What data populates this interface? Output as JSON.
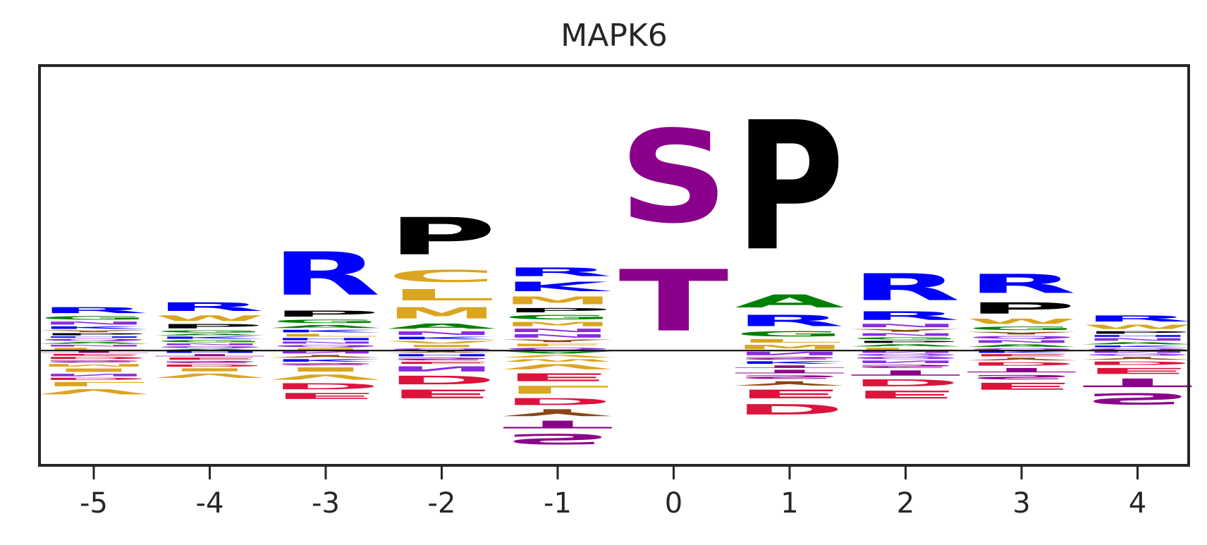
{
  "chart_data": {
    "type": "sequence-logo",
    "title": "MAPK6",
    "xlabel": "",
    "ylabel": "",
    "positions": [
      -5,
      -4,
      -3,
      -2,
      -1,
      0,
      1,
      2,
      3,
      4
    ],
    "xticks": [
      "-5",
      "-4",
      "-3",
      "-2",
      "-1",
      "0",
      "1",
      "2",
      "3",
      "4"
    ],
    "ylim": [
      -1.65,
      4.1
    ],
    "grid": false,
    "legend": "none",
    "baseline": 0,
    "color_map": {
      "R": "#0000ff",
      "K": "#0000ff",
      "H": "#0000ff",
      "D": "#dc143c",
      "E": "#dc143c",
      "S": "#8b008b",
      "T": "#8b008b",
      "N": "#8a2be2",
      "Q": "#8a2be2",
      "G": "#008000",
      "A": "#008000",
      "C": "#daa520",
      "M": "#daa520",
      "L": "#daa520",
      "I": "#daa520",
      "V": "#daa520",
      "F": "#daa520",
      "W": "#daa520",
      "Y": "#8b4513",
      "P": "#000000"
    },
    "logo": [
      {
        "position": -5,
        "positive": [
          [
            "L",
            0.05
          ],
          [
            "N",
            0.04
          ],
          [
            "A",
            0.04
          ],
          [
            "Q",
            0.05
          ],
          [
            "H",
            0.03
          ],
          [
            "P",
            0.05
          ],
          [
            "Y",
            0.04
          ],
          [
            "K",
            0.06
          ],
          [
            "N",
            0.07
          ],
          [
            "G",
            0.08
          ],
          [
            "R",
            0.14
          ]
        ],
        "negative": [
          [
            "T",
            0.04
          ],
          [
            "E",
            0.04
          ],
          [
            "D",
            0.05
          ],
          [
            "S",
            0.05
          ],
          [
            "M",
            0.06
          ],
          [
            "I",
            0.08
          ],
          [
            "N",
            0.06
          ],
          [
            "D",
            0.05
          ],
          [
            "L",
            0.1
          ],
          [
            "V",
            0.12
          ]
        ]
      },
      {
        "position": -4,
        "positive": [
          [
            "A",
            0.03
          ],
          [
            "Q",
            0.04
          ],
          [
            "N",
            0.04
          ],
          [
            "G",
            0.05
          ],
          [
            "K",
            0.05
          ],
          [
            "A",
            0.04
          ],
          [
            "G",
            0.05
          ],
          [
            "P",
            0.1
          ],
          [
            "W",
            0.13
          ],
          [
            "R",
            0.2
          ]
        ],
        "negative": [
          [
            "H",
            0.04
          ],
          [
            "T",
            0.05
          ],
          [
            "E",
            0.05
          ],
          [
            "S",
            0.05
          ],
          [
            "D",
            0.05
          ],
          [
            "I",
            0.07
          ],
          [
            "V",
            0.1
          ]
        ]
      },
      {
        "position": -3,
        "positive": [
          [
            "I",
            0.04
          ],
          [
            "Q",
            0.05
          ],
          [
            "N",
            0.05
          ],
          [
            "H",
            0.05
          ],
          [
            "L",
            0.06
          ],
          [
            "K",
            0.06
          ],
          [
            "A",
            0.07
          ],
          [
            "G",
            0.08
          ],
          [
            "P",
            0.14
          ],
          [
            "R",
            1.0
          ]
        ],
        "negative": [
          [
            "N",
            0.05
          ],
          [
            "Y",
            0.06
          ],
          [
            "K",
            0.06
          ],
          [
            "S",
            0.05
          ],
          [
            "I",
            0.1
          ],
          [
            "V",
            0.12
          ],
          [
            "D",
            0.14
          ],
          [
            "E",
            0.14
          ]
        ]
      },
      {
        "position": -2,
        "positive": [
          [
            "Q",
            0.04
          ],
          [
            "I",
            0.05
          ],
          [
            "V",
            0.06
          ],
          [
            "K",
            0.06
          ],
          [
            "N",
            0.08
          ],
          [
            "A",
            0.12
          ],
          [
            "M",
            0.26
          ],
          [
            "L",
            0.26
          ],
          [
            "C",
            0.28
          ],
          [
            "P",
            0.86
          ]
        ],
        "negative": [
          [
            "Y",
            0.04
          ],
          [
            "H",
            0.05
          ],
          [
            "S",
            0.06
          ],
          [
            "E",
            0.05
          ],
          [
            "N",
            0.12
          ],
          [
            "D",
            0.2
          ],
          [
            "E",
            0.2
          ]
        ]
      },
      {
        "position": -1,
        "positive": [
          [
            "Q",
            0.05
          ],
          [
            "F",
            0.06
          ],
          [
            "Y",
            0.06
          ],
          [
            "N",
            0.08
          ],
          [
            "N",
            0.08
          ],
          [
            "M",
            0.1
          ],
          [
            "G",
            0.1
          ],
          [
            "P",
            0.1
          ],
          [
            "M",
            0.18
          ],
          [
            "K",
            0.22
          ],
          [
            "R",
            0.2
          ]
        ],
        "negative": [
          [
            "A",
            0.05
          ],
          [
            "V",
            0.06
          ],
          [
            "W",
            0.06
          ],
          [
            "V",
            0.12
          ],
          [
            "E",
            0.18
          ],
          [
            "L",
            0.18
          ],
          [
            "D",
            0.16
          ],
          [
            "Y",
            0.16
          ],
          [
            "T",
            0.18
          ],
          [
            "S",
            0.24
          ]
        ]
      },
      {
        "position": 0,
        "positive": [
          [
            "T",
            1.42
          ],
          [
            "S",
            2.14
          ]
        ],
        "negative": []
      },
      {
        "position": 1,
        "positive": [
          [
            "M",
            0.1
          ],
          [
            "L",
            0.08
          ],
          [
            "G",
            0.12
          ],
          [
            "R",
            0.26
          ],
          [
            "A",
            0.3
          ],
          [
            "P",
            2.98
          ]
        ],
        "negative": [
          [
            "N",
            0.08
          ],
          [
            "S",
            0.06
          ],
          [
            "K",
            0.06
          ],
          [
            "T",
            0.06
          ],
          [
            "T",
            0.08
          ],
          [
            "S",
            0.08
          ],
          [
            "Y",
            0.1
          ],
          [
            "E",
            0.2
          ],
          [
            "D",
            0.24
          ]
        ]
      },
      {
        "position": 2,
        "positive": [
          [
            "L",
            0.05
          ],
          [
            "A",
            0.05
          ],
          [
            "P",
            0.05
          ],
          [
            "G",
            0.05
          ],
          [
            "N",
            0.06
          ],
          [
            "Y",
            0.06
          ],
          [
            "N",
            0.08
          ],
          [
            "R",
            0.2
          ],
          [
            "R",
            0.62
          ]
        ],
        "negative": [
          [
            "N",
            0.04
          ],
          [
            "Q",
            0.04
          ],
          [
            "Q",
            0.05
          ],
          [
            "N",
            0.06
          ],
          [
            "S",
            0.07
          ],
          [
            "T",
            0.12
          ],
          [
            "D",
            0.16
          ],
          [
            "E",
            0.18
          ]
        ]
      },
      {
        "position": 3,
        "positive": [
          [
            "Q",
            0.04
          ],
          [
            "A",
            0.06
          ],
          [
            "N",
            0.06
          ],
          [
            "Q",
            0.06
          ],
          [
            "Y",
            0.06
          ],
          [
            "G",
            0.08
          ],
          [
            "W",
            0.12
          ],
          [
            "P",
            0.26
          ],
          [
            "R",
            0.44
          ]
        ],
        "negative": [
          [
            "K",
            0.04
          ],
          [
            "E",
            0.05
          ],
          [
            "Y",
            0.06
          ],
          [
            "D",
            0.08
          ],
          [
            "T",
            0.1
          ],
          [
            "S",
            0.1
          ],
          [
            "E",
            0.16
          ]
        ]
      },
      {
        "position": 4,
        "positive": [
          [
            "Q",
            0.04
          ],
          [
            "K",
            0.04
          ],
          [
            "A",
            0.05
          ],
          [
            "N",
            0.06
          ],
          [
            "H",
            0.04
          ],
          [
            "P",
            0.06
          ],
          [
            "W",
            0.1
          ],
          [
            "R",
            0.14
          ]
        ],
        "negative": [
          [
            "N",
            0.04
          ],
          [
            "Q",
            0.04
          ],
          [
            "Y",
            0.06
          ],
          [
            "D",
            0.08
          ],
          [
            "E",
            0.14
          ],
          [
            "T",
            0.2
          ],
          [
            "S",
            0.26
          ]
        ]
      }
    ]
  }
}
